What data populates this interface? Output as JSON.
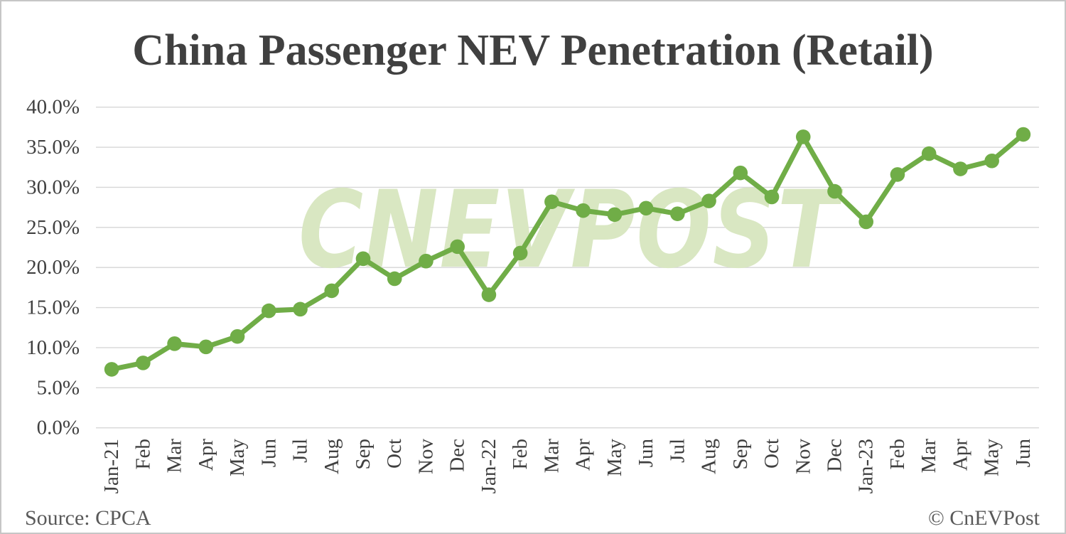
{
  "title": "China Passenger NEV Penetration (Retail)",
  "watermark": "CNEVPOST",
  "footer": {
    "source": "Source: CPCA",
    "copyright": "© CnEVPost"
  },
  "colors": {
    "line": "#70ad47",
    "marker": "#70ad47",
    "watermark": "#d9e7c2",
    "grid": "#d6d6d6",
    "tick_text": "#404040",
    "footer_text": "#595959",
    "title_text": "#404040"
  },
  "chart_data": {
    "type": "line",
    "title": "China Passenger NEV Penetration (Retail)",
    "series_name": "China passenger NEV retail penetration",
    "categories": [
      "Jan-21",
      "Feb",
      "Mar",
      "Apr",
      "May",
      "Jun",
      "Jul",
      "Aug",
      "Sep",
      "Oct",
      "Nov",
      "Dec",
      "Jan-22",
      "Feb",
      "Mar",
      "Apr",
      "May",
      "Jun",
      "Jul",
      "Aug",
      "Sep",
      "Oct",
      "Nov",
      "Dec",
      "Jan-23",
      "Feb",
      "Mar",
      "Apr",
      "May",
      "Jun"
    ],
    "values": [
      7.3,
      8.1,
      10.5,
      10.1,
      11.4,
      14.6,
      14.8,
      17.1,
      21.1,
      18.6,
      20.8,
      22.6,
      16.6,
      21.8,
      28.2,
      27.1,
      26.6,
      27.4,
      26.7,
      28.3,
      31.8,
      28.8,
      36.3,
      29.5,
      25.7,
      31.6,
      34.2,
      32.3,
      33.3,
      36.6
    ],
    "unit": "%",
    "ylim": [
      0,
      40
    ],
    "y_tick_step": 5,
    "y_tick_labels_top_to_bottom": [
      "40.0%",
      "35.0%",
      "30.0%",
      "25.0%",
      "20.0%",
      "15.0%",
      "10.0%",
      "5.0%",
      "0.0%"
    ],
    "x_label_rotation_degrees": -90,
    "grid": "horizontal-only",
    "legend": "none",
    "marker": "circle",
    "source_note": "Source: CPCA"
  }
}
